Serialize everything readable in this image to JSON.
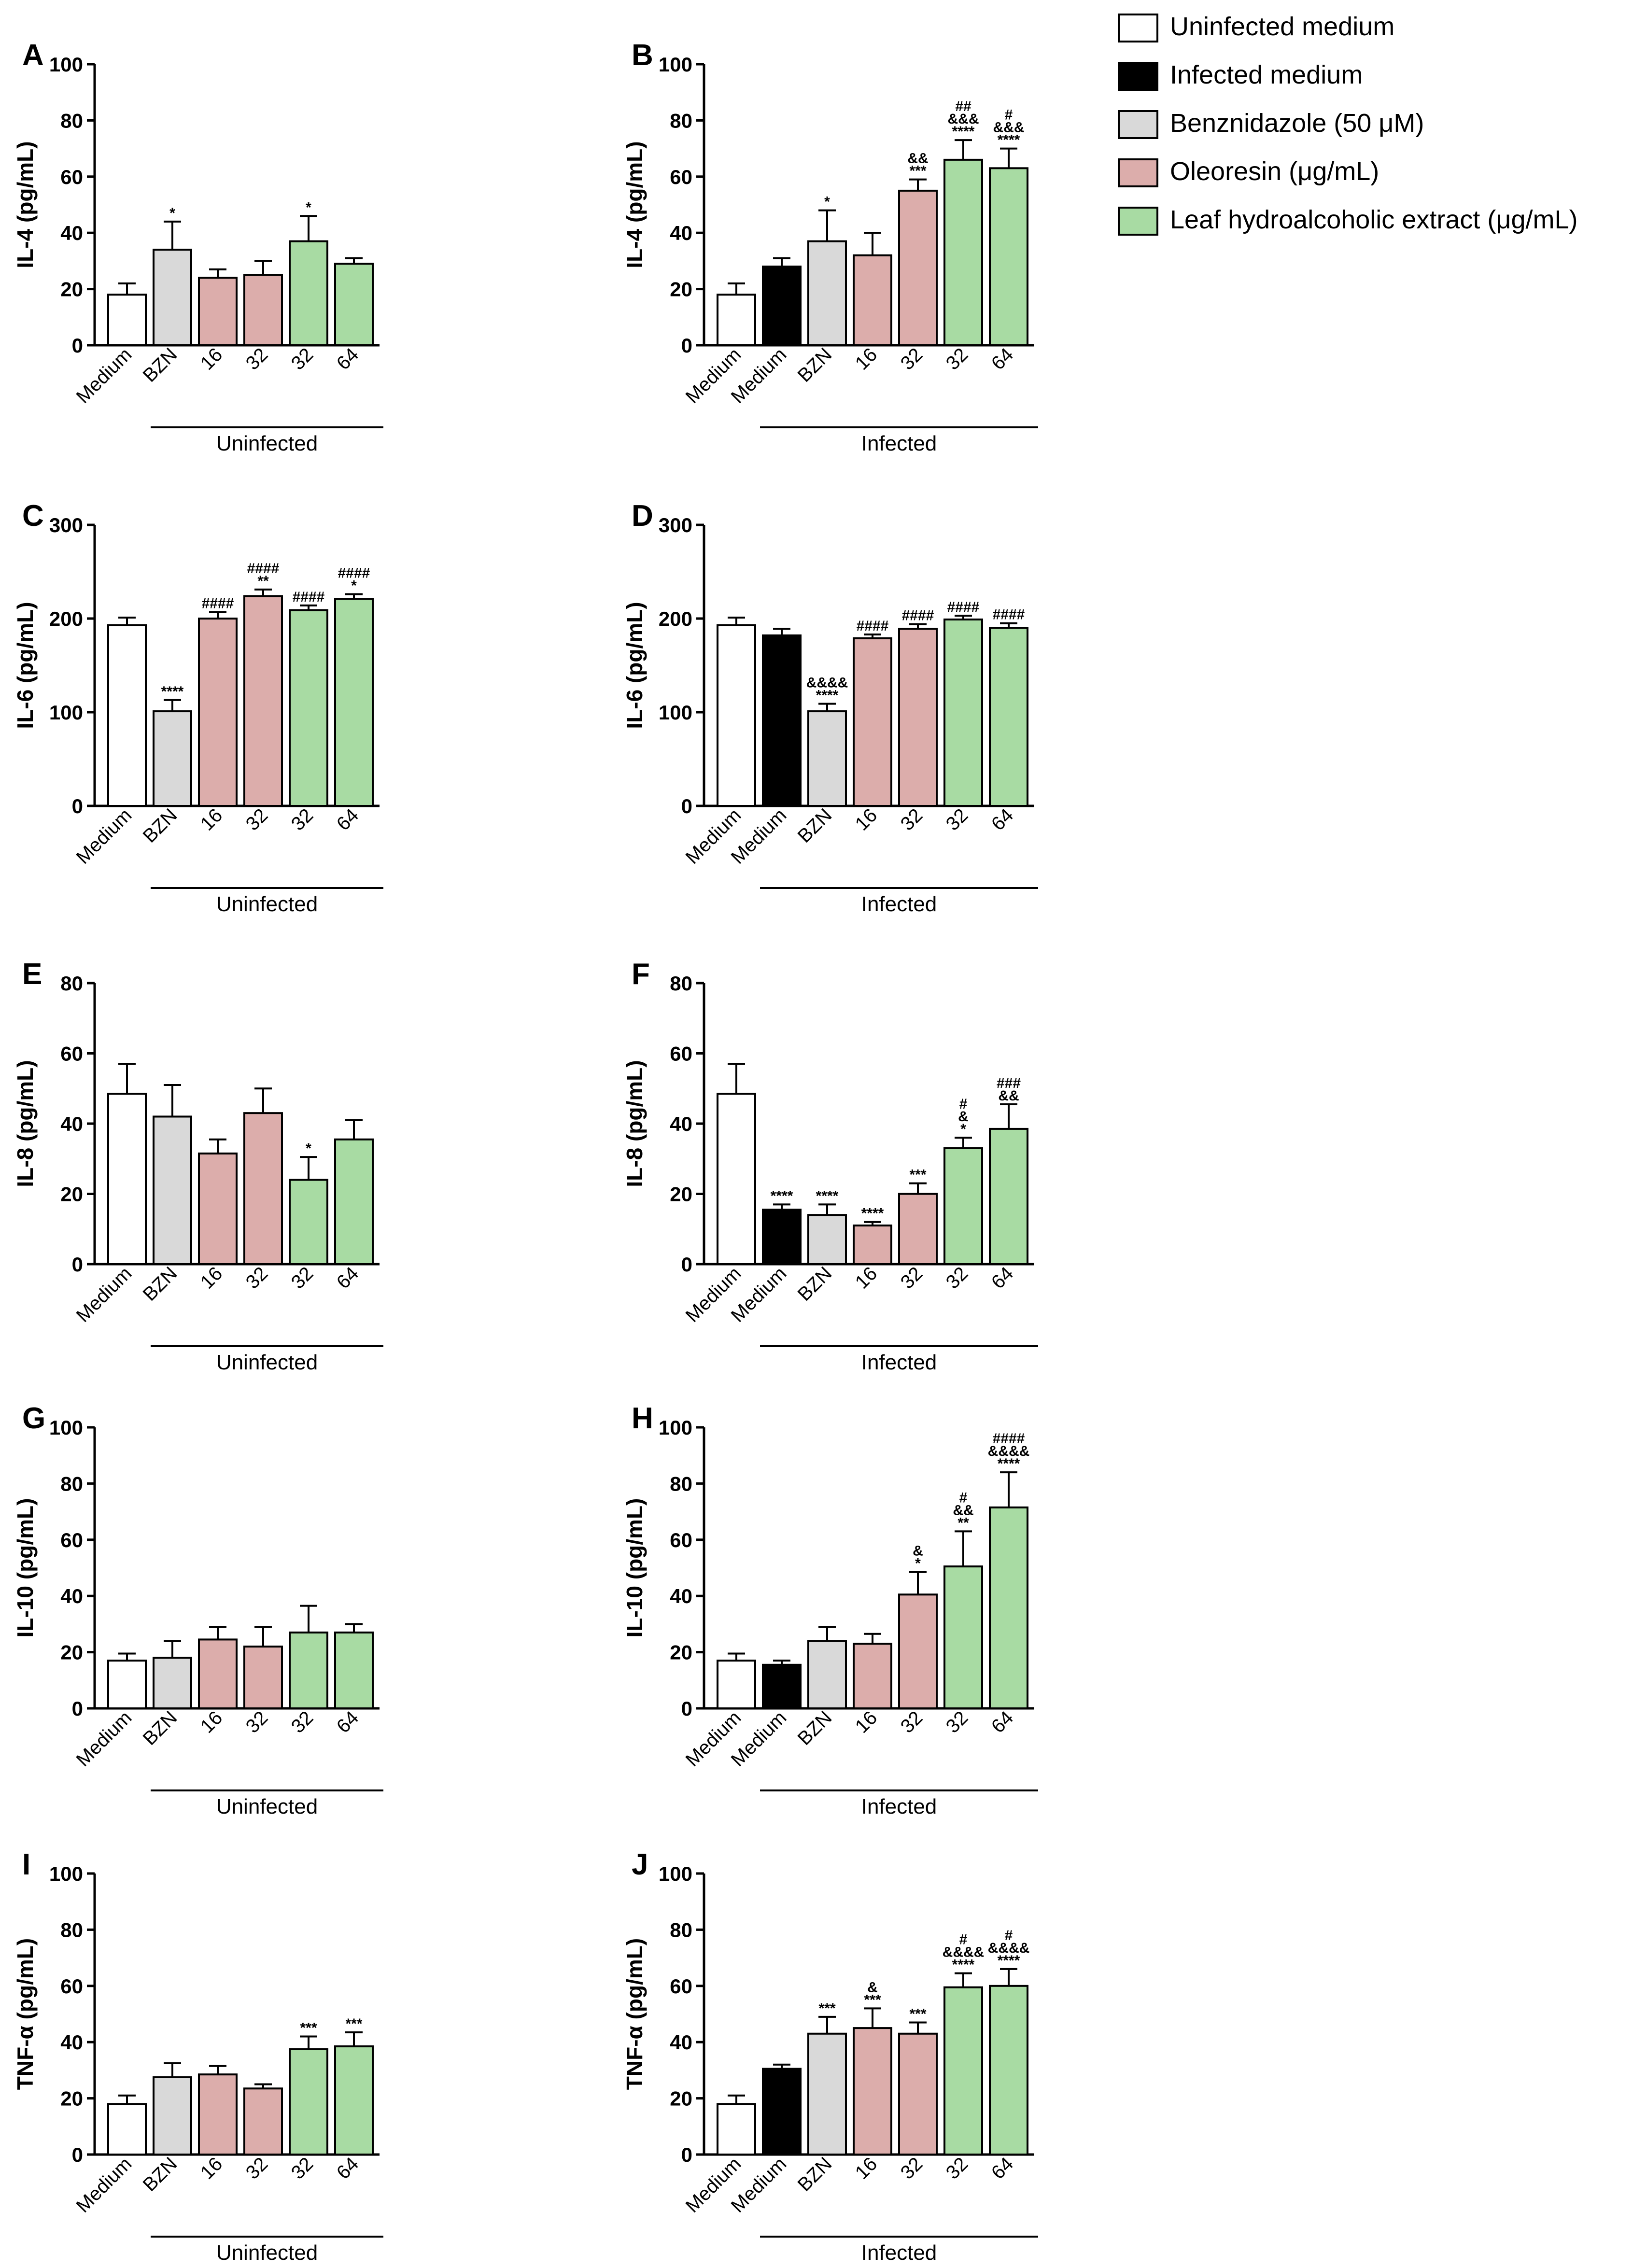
{
  "colors": {
    "uninfected_medium": "#ffffff",
    "infected_medium": "#000000",
    "benznidazole": "#d9d9d9",
    "oleoresin": "#dcadab",
    "leaf": "#a8dba3",
    "bar_edge": "#000000"
  },
  "legend": [
    {
      "label": "Uninfected medium",
      "color_key": "uninfected_medium"
    },
    {
      "label": "Infected medium",
      "color_key": "infected_medium"
    },
    {
      "label": "Benznidazole (50 μM)",
      "color_key": "benznidazole"
    },
    {
      "label": "Oleoresin (μg/mL)",
      "color_key": "oleoresin"
    },
    {
      "label": "Leaf hydroalcoholic extract (μg/mL)",
      "color_key": "leaf"
    }
  ],
  "chart_data": [
    {
      "panel": "A",
      "type": "bar",
      "ylabel": "IL-4 (pg/mL)",
      "ylim": [
        0,
        100
      ],
      "yticks": [
        0,
        20,
        40,
        60,
        80,
        100
      ],
      "group_label": "Uninfected",
      "categories": [
        "Medium",
        "BZN",
        "16",
        "32",
        "32",
        "64"
      ],
      "groups": [
        "uninfected_medium",
        "benznidazole",
        "oleoresin",
        "oleoresin",
        "leaf",
        "leaf"
      ],
      "values": [
        18,
        34,
        24,
        25,
        37,
        29
      ],
      "errors": [
        4,
        10,
        3,
        5,
        9,
        2
      ],
      "annotations": [
        [],
        [
          "*"
        ],
        [],
        [],
        [
          "*"
        ],
        []
      ]
    },
    {
      "panel": "B",
      "type": "bar",
      "ylabel": "IL-4 (pg/mL)",
      "ylim": [
        0,
        100
      ],
      "yticks": [
        0,
        20,
        40,
        60,
        80,
        100
      ],
      "group_label": "Infected",
      "categories": [
        "Medium",
        "Medium",
        "BZN",
        "16",
        "32",
        "32",
        "64"
      ],
      "groups": [
        "uninfected_medium",
        "infected_medium",
        "benznidazole",
        "oleoresin",
        "oleoresin",
        "leaf",
        "leaf"
      ],
      "values": [
        18,
        28,
        37,
        32,
        55,
        66,
        63
      ],
      "errors": [
        4,
        3,
        11,
        8,
        4,
        7,
        7
      ],
      "annotations": [
        [],
        [],
        [
          "*"
        ],
        [],
        [
          "&&",
          "***"
        ],
        [
          "##",
          "&&&",
          "****"
        ],
        [
          "#",
          "&&&",
          "****"
        ]
      ]
    },
    {
      "panel": "C",
      "type": "bar",
      "ylabel": "IL-6 (pg/mL)",
      "ylim": [
        0,
        300
      ],
      "yticks": [
        0,
        100,
        200,
        300
      ],
      "group_label": "Uninfected",
      "categories": [
        "Medium",
        "BZN",
        "16",
        "32",
        "32",
        "64"
      ],
      "groups": [
        "uninfected_medium",
        "benznidazole",
        "oleoresin",
        "oleoresin",
        "leaf",
        "leaf"
      ],
      "values": [
        193,
        101,
        200,
        224,
        209,
        221
      ],
      "errors": [
        8,
        12,
        7,
        7,
        5,
        5
      ],
      "annotations": [
        [],
        [
          "****"
        ],
        [
          "####"
        ],
        [
          "####",
          "**"
        ],
        [
          "####"
        ],
        [
          "####",
          "*"
        ]
      ]
    },
    {
      "panel": "D",
      "type": "bar",
      "ylabel": "IL-6 (pg/mL)",
      "ylim": [
        0,
        300
      ],
      "yticks": [
        0,
        100,
        200,
        300
      ],
      "group_label": "Infected",
      "categories": [
        "Medium",
        "Medium",
        "BZN",
        "16",
        "32",
        "32",
        "64"
      ],
      "groups": [
        "uninfected_medium",
        "infected_medium",
        "benznidazole",
        "oleoresin",
        "oleoresin",
        "leaf",
        "leaf"
      ],
      "values": [
        193,
        182,
        101,
        179,
        189,
        199,
        190
      ],
      "errors": [
        8,
        7,
        8,
        4,
        5,
        4,
        5
      ],
      "annotations": [
        [],
        [],
        [
          "&&&&",
          "****"
        ],
        [
          "####"
        ],
        [
          "####"
        ],
        [
          "####"
        ],
        [
          "####"
        ]
      ]
    },
    {
      "panel": "E",
      "type": "bar",
      "ylabel": "IL-8 (pg/mL)",
      "ylim": [
        0,
        80
      ],
      "yticks": [
        0,
        20,
        40,
        60,
        80
      ],
      "group_label": "Uninfected",
      "categories": [
        "Medium",
        "BZN",
        "16",
        "32",
        "32",
        "64"
      ],
      "groups": [
        "uninfected_medium",
        "benznidazole",
        "oleoresin",
        "oleoresin",
        "leaf",
        "leaf"
      ],
      "values": [
        48.5,
        42,
        31.5,
        43,
        24,
        35.5
      ],
      "errors": [
        8.5,
        9,
        4,
        7,
        6.5,
        5.5
      ],
      "annotations": [
        [],
        [],
        [],
        [],
        [
          "*"
        ],
        []
      ]
    },
    {
      "panel": "F",
      "type": "bar",
      "ylabel": "IL-8 (pg/mL)",
      "ylim": [
        0,
        80
      ],
      "yticks": [
        0,
        20,
        40,
        60,
        80
      ],
      "group_label": "Infected",
      "categories": [
        "Medium",
        "Medium",
        "BZN",
        "16",
        "32",
        "32",
        "64"
      ],
      "groups": [
        "uninfected_medium",
        "infected_medium",
        "benznidazole",
        "oleoresin",
        "oleoresin",
        "leaf",
        "leaf"
      ],
      "values": [
        48.5,
        15.5,
        14,
        11,
        20,
        33,
        38.5
      ],
      "errors": [
        8.5,
        1.5,
        3,
        1,
        3,
        3,
        7
      ],
      "annotations": [
        [],
        [
          "****"
        ],
        [
          "****"
        ],
        [
          "****"
        ],
        [
          "***"
        ],
        [
          "#",
          "&",
          "*"
        ],
        [
          "###",
          "&&"
        ]
      ]
    },
    {
      "panel": "G",
      "type": "bar",
      "ylabel": "IL-10 (pg/mL)",
      "ylim": [
        0,
        100
      ],
      "yticks": [
        0,
        20,
        40,
        60,
        80,
        100
      ],
      "group_label": "Uninfected",
      "categories": [
        "Medium",
        "BZN",
        "16",
        "32",
        "32",
        "64"
      ],
      "groups": [
        "uninfected_medium",
        "benznidazole",
        "oleoresin",
        "oleoresin",
        "leaf",
        "leaf"
      ],
      "values": [
        17,
        18,
        24.5,
        22,
        27,
        27
      ],
      "errors": [
        2.5,
        6,
        4.5,
        7,
        9.5,
        3
      ],
      "annotations": [
        [],
        [],
        [],
        [],
        [],
        []
      ]
    },
    {
      "panel": "H",
      "type": "bar",
      "ylabel": "IL-10 (pg/mL)",
      "ylim": [
        0,
        100
      ],
      "yticks": [
        0,
        20,
        40,
        60,
        80,
        100
      ],
      "group_label": "Infected",
      "categories": [
        "Medium",
        "Medium",
        "BZN",
        "16",
        "32",
        "32",
        "64"
      ],
      "groups": [
        "uninfected_medium",
        "infected_medium",
        "benznidazole",
        "oleoresin",
        "oleoresin",
        "leaf",
        "leaf"
      ],
      "values": [
        17,
        15.5,
        24,
        23,
        40.5,
        50.5,
        71.5
      ],
      "errors": [
        2.5,
        1.5,
        5,
        3.5,
        8,
        12.5,
        12.5
      ],
      "annotations": [
        [],
        [],
        [],
        [],
        [
          "&",
          "*"
        ],
        [
          "#",
          "&&",
          "**"
        ],
        [
          "####",
          "&&&&",
          "****"
        ]
      ]
    },
    {
      "panel": "I",
      "type": "bar",
      "ylabel": "TNF-α (pg/mL)",
      "ylim": [
        0,
        100
      ],
      "yticks": [
        0,
        20,
        40,
        60,
        80,
        100
      ],
      "group_label": "Uninfected",
      "categories": [
        "Medium",
        "BZN",
        "16",
        "32",
        "32",
        "64"
      ],
      "groups": [
        "uninfected_medium",
        "benznidazole",
        "oleoresin",
        "oleoresin",
        "leaf",
        "leaf"
      ],
      "values": [
        18,
        27.5,
        28.5,
        23.5,
        37.5,
        38.5
      ],
      "errors": [
        3,
        5,
        3,
        1.5,
        4.5,
        5
      ],
      "annotations": [
        [],
        [],
        [],
        [],
        [
          "***"
        ],
        [
          "***"
        ]
      ]
    },
    {
      "panel": "J",
      "type": "bar",
      "ylabel": "TNF-α (pg/mL)",
      "ylim": [
        0,
        100
      ],
      "yticks": [
        0,
        20,
        40,
        60,
        80,
        100
      ],
      "group_label": "Infected",
      "categories": [
        "Medium",
        "Medium",
        "BZN",
        "16",
        "32",
        "32",
        "64"
      ],
      "groups": [
        "uninfected_medium",
        "infected_medium",
        "benznidazole",
        "oleoresin",
        "oleoresin",
        "leaf",
        "leaf"
      ],
      "values": [
        18,
        30.5,
        43,
        45,
        43,
        59.5,
        60
      ],
      "errors": [
        3,
        1.5,
        6,
        7,
        4,
        5,
        6
      ],
      "annotations": [
        [],
        [],
        [
          "***"
        ],
        [
          "&",
          "***"
        ],
        [
          "***"
        ],
        [
          "#",
          "&&&&",
          "****"
        ],
        [
          "#",
          "&&&&",
          "****"
        ]
      ]
    }
  ]
}
